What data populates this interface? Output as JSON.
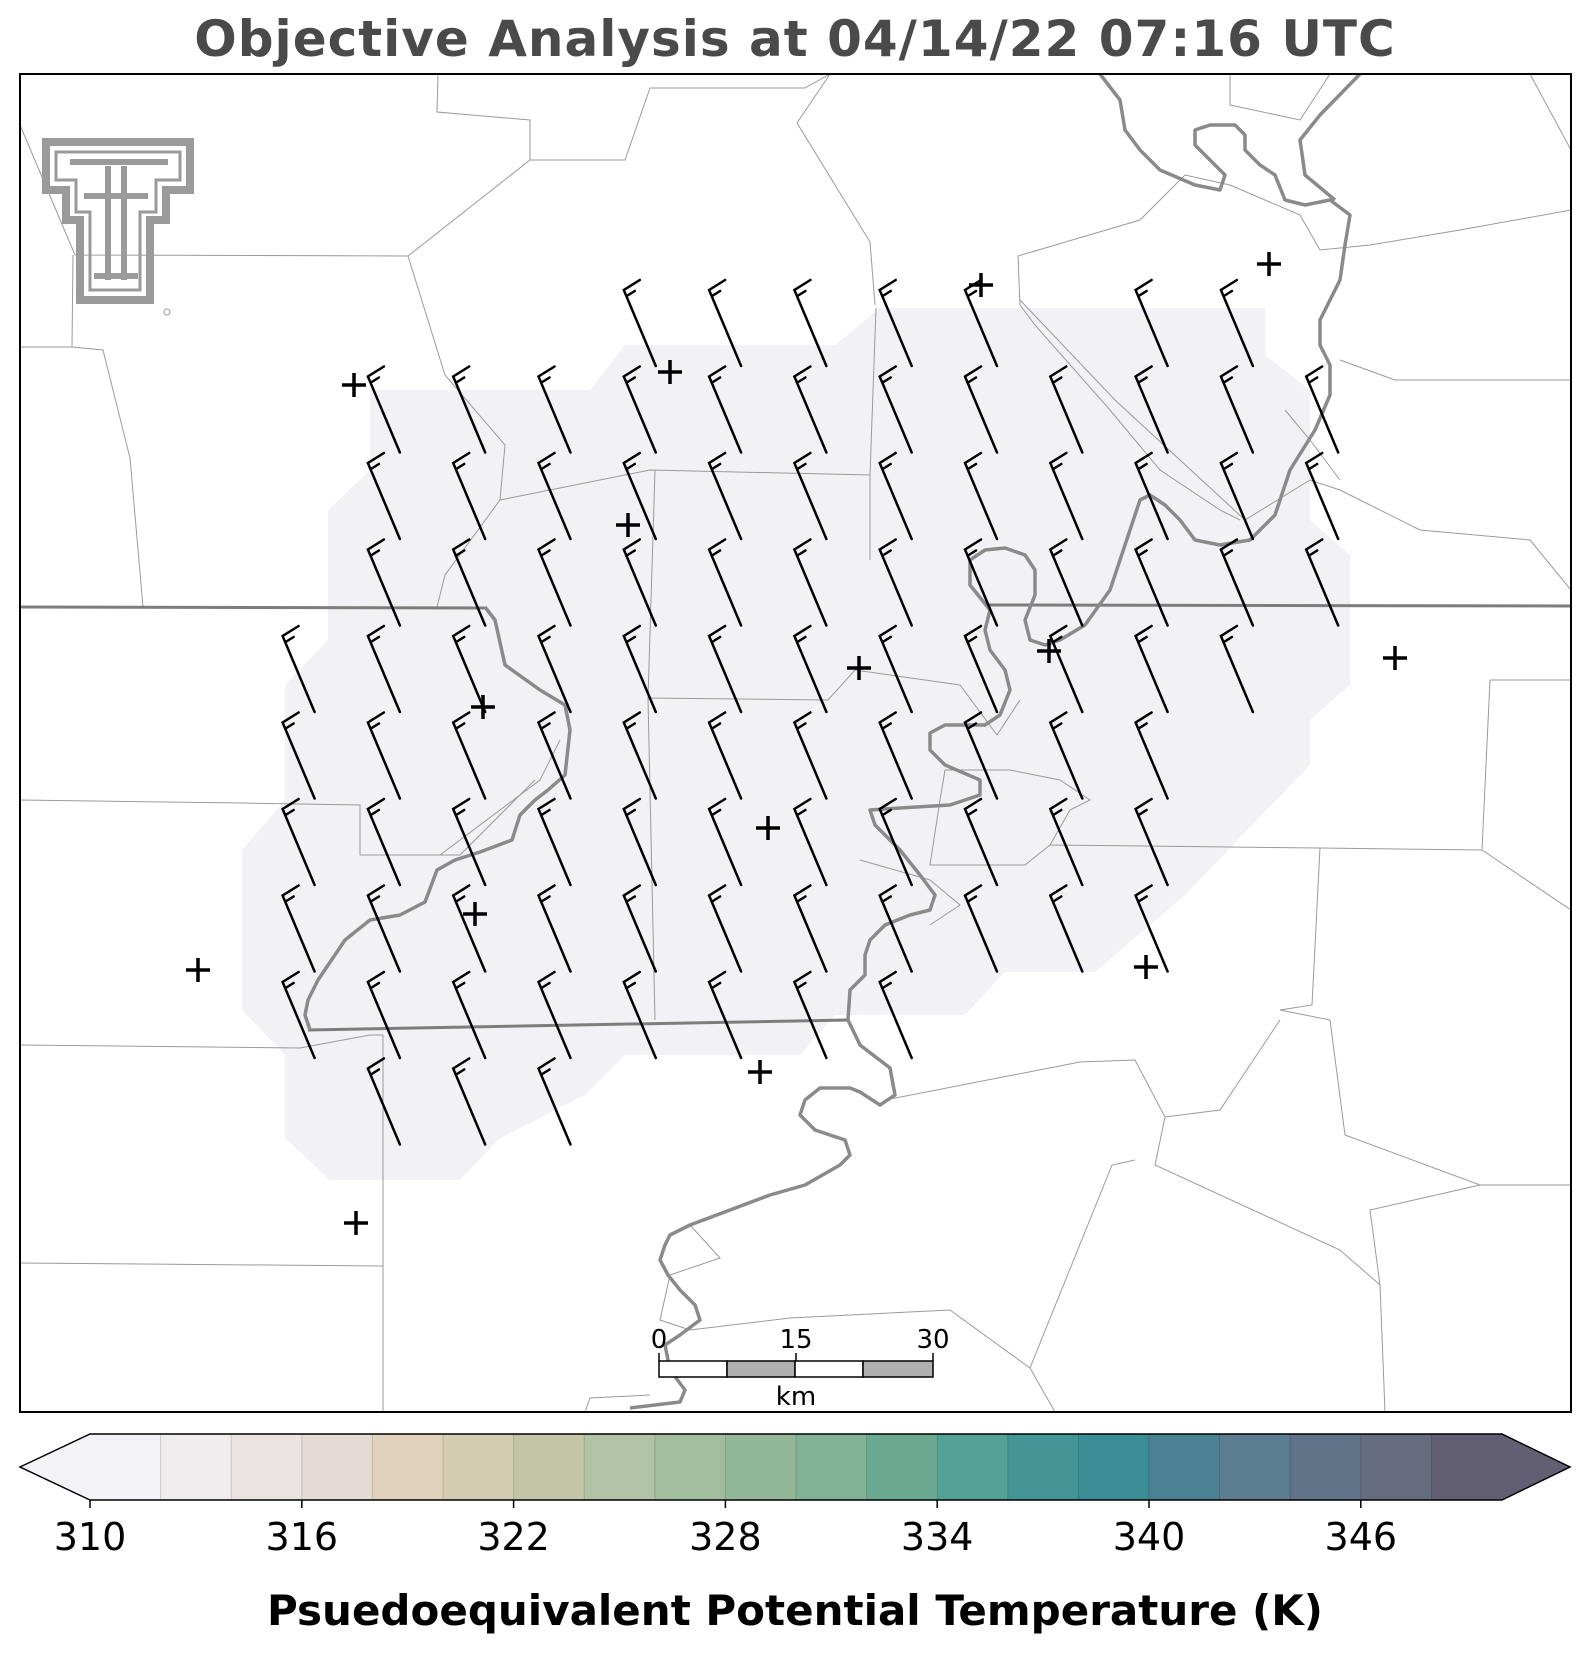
{
  "title": "Objective Analysis at 04/14/22 07:16 UTC",
  "colorbar": {
    "label": "Psuedoequivalent Potential Temperature (K)",
    "ticks": [
      "310",
      "316",
      "322",
      "328",
      "334",
      "340",
      "346"
    ],
    "range": [
      310,
      350
    ],
    "step": 2,
    "colors": [
      "#f2f2f7",
      "#efeded",
      "#e9e4e2",
      "#e3dcd4",
      "#e0d2bd",
      "#d2ccb0",
      "#c2c6a6",
      "#b2c3a5",
      "#a2bd9c",
      "#92b897",
      "#82b396",
      "#6ba993",
      "#56a195",
      "#449596",
      "#3a8d94",
      "#4a8293",
      "#5c7c90",
      "#617389",
      "#656c7f",
      "#625e73"
    ],
    "under_color": "#f2f2f7",
    "over_color": "#625e73"
  },
  "scalebar": {
    "ticks": [
      "0",
      "15",
      "30"
    ],
    "unit": "km"
  },
  "map": {
    "shaded_field_value_K": 310,
    "station_count": 16,
    "wind_barb_spacing": "regular grid",
    "logo": "Texas Tech Double T",
    "wind_barbs": [
      {
        "row": 0,
        "cols": [
          6,
          7,
          8,
          9,
          10,
          12,
          13
        ]
      },
      {
        "row": 1,
        "cols": [
          3,
          4,
          5,
          6,
          7,
          8,
          9,
          10,
          11,
          12,
          13,
          14
        ]
      },
      {
        "row": 2,
        "cols": [
          3,
          4,
          5,
          6,
          7,
          8,
          9,
          10,
          11,
          12,
          13,
          14
        ]
      },
      {
        "row": 3,
        "cols": [
          3,
          4,
          5,
          6,
          7,
          8,
          9,
          10,
          11,
          12,
          13,
          14
        ]
      },
      {
        "row": 4,
        "cols": [
          2,
          3,
          4,
          5,
          6,
          7,
          8,
          9,
          10,
          11,
          12,
          13
        ]
      },
      {
        "row": 5,
        "cols": [
          2,
          3,
          4,
          5,
          6,
          7,
          8,
          9,
          10,
          11,
          12
        ]
      },
      {
        "row": 6,
        "cols": [
          2,
          3,
          4,
          5,
          6,
          7,
          8,
          9,
          10,
          11,
          12
        ]
      },
      {
        "row": 7,
        "cols": [
          2,
          3,
          4,
          5,
          6,
          7,
          8,
          9,
          10,
          11,
          12
        ]
      },
      {
        "row": 8,
        "cols": [
          2,
          3,
          4,
          5,
          6,
          7,
          8,
          9
        ]
      },
      {
        "row": 9,
        "cols": [
          3,
          4,
          5
        ]
      }
    ]
  }
}
